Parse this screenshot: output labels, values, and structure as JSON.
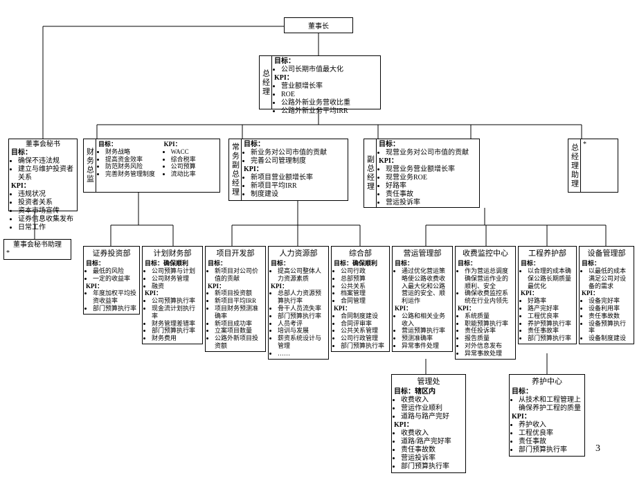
{
  "page_number": "3",
  "colors": {
    "line": "#000000",
    "bg": "#ffffff"
  },
  "font": {
    "family": "SimSun",
    "base_size": 10
  },
  "chairman": "董事长",
  "gm": {
    "label": "总经理",
    "goal_h": "目标：",
    "goal": "公司长期市值最大化",
    "kpi_h": "KPI：",
    "kpis": [
      "营业额增长率",
      "ROE",
      "公路外新业务营收比重",
      "公路外新业务平均IRR"
    ]
  },
  "secretary": {
    "title": "董事会秘书",
    "goal_h": "目标：",
    "goals": [
      "确保不违法规",
      "建立与维护投资者关系"
    ],
    "kpi_h": "KPI：",
    "kpis": [
      "违规状况",
      "投资者关系",
      "资本市场宣传",
      "证券信息收集发布",
      "日常工作"
    ]
  },
  "secretary_asst": {
    "title": "董事会秘书助理",
    "body": "*"
  },
  "cfo": {
    "label": "财务总监",
    "goal_h": "目标：",
    "goals": [
      "财务战略",
      "提高资金效率",
      "防范财务风险",
      "完善财务管理制度"
    ],
    "kpi_h": "KPI：",
    "kpis": [
      "WACC",
      "综合税率",
      "公司预算",
      "流动比率"
    ]
  },
  "evp": {
    "label": "常务副总经理",
    "goal_h": "目标：",
    "goals": [
      "新业务对公司市值的贡献",
      "完善公司管理制度"
    ],
    "kpi_h": "KPI：",
    "kpis": [
      "新项目营业额增长率",
      "新项目平均IRR",
      "制度建设"
    ]
  },
  "vp": {
    "label": "副总经理",
    "goal_h": "目标：",
    "goals": [
      "现营业务对公司市值的贡献"
    ],
    "kpi_h": "KPI：",
    "kpis": [
      "现营业务营业额增长率",
      "现营业务ROE",
      "好路率",
      "责任事故",
      "营运投诉率"
    ]
  },
  "gm_asst": {
    "label": "总经理助理",
    "body": "*"
  },
  "depts": {
    "sec_inv": {
      "title": "证券投资部",
      "goal_h": "目标：",
      "goals": [
        "最低的风险",
        "一定的收益率"
      ],
      "kpi_h": "KPI：",
      "kpis": [
        "年度加权平均投资收益率",
        "部门预算执行率"
      ]
    },
    "plan_fin": {
      "title": "计划财务部",
      "goal_h": "目标：确保顺利",
      "goals": [
        "公司预算与计划",
        "公司财务管理",
        "融资"
      ],
      "kpi_h": "KPI：",
      "kpis": [
        "公司预算执行率",
        "现金流计划执行率",
        "财务管理差错率",
        "部门预算执行率",
        "财务费用"
      ]
    },
    "proj_dev": {
      "title": "项目开发部",
      "goal_h": "目标：",
      "goals": [
        "新项目对公司价值的贡献"
      ],
      "kpi_h": "KPI：",
      "kpis": [
        "新项目投资额",
        "新项目平均IRR",
        "项目财务预测准确率",
        "新项目成功率",
        "立案项目数量",
        "公路外新项目投资额"
      ]
    },
    "hr": {
      "title": "人力资源部",
      "goal_h": "目标：",
      "goals": [
        "提高公司整体人力资源素质"
      ],
      "kpi_h": "KPI：",
      "kpis": [
        "总部人力资源预算执行率",
        "骨干人员流失率",
        "部门预算执行率",
        "人员考评",
        "培训与发展",
        "薪资系统设计与管理",
        "……"
      ]
    },
    "gen": {
      "title": "综合部",
      "goal_h": "目标：确保顺利",
      "goals": [
        "公司行政",
        "总部预算",
        "公共关系",
        "档案管理",
        "合同管理"
      ],
      "kpi_h": "KPI：",
      "kpis": [
        "合同制度建设",
        "合同评审率",
        "公共关系管理",
        "公司行政管理",
        "部门预算执行率"
      ]
    },
    "ops": {
      "title": "营运管理部",
      "goal_h": "目标：",
      "goals": [
        "通过优化营运策略使公路收费收入最大化和公路营运的安全、顺利运作"
      ],
      "kpi_h": "KPI：",
      "kpis": [
        "公路和相关业务收入",
        "营运预算执行率",
        "预测准确率",
        "异常事件处理"
      ]
    },
    "toll": {
      "title": "收费监控中心",
      "goal_h": "目标：",
      "goals": [
        "作为营运总调度确保营运作业的顺利、安全",
        "确保收费监控系统在行业内领先"
      ],
      "kpi_h": "KPI：",
      "kpis": [
        "系统质量",
        "职能预算执行率",
        "责任投诉率",
        "报告质量",
        "对外信息发布",
        "异常事故处理"
      ]
    },
    "maint": {
      "title": "工程养护部",
      "goal_h": "目标：",
      "goals": [
        "以合理的成本确保公路长期质量最优化"
      ],
      "kpi_h": "KPI：",
      "kpis": [
        "好路率",
        "路产完好率",
        "工程优良率",
        "养护预算执行率",
        "责任事故率",
        "部门预算执行率"
      ]
    },
    "equip": {
      "title": "设备管理部",
      "goal_h": "目标：",
      "goals": [
        "以最低的成本满足公司对设备的需求"
      ],
      "kpi_h": "KPI：",
      "kpis": [
        "设备完好率",
        "设备利用率",
        "责任事故数",
        "设备预算执行率",
        "设备制度建设"
      ]
    }
  },
  "sub": {
    "mgmt": {
      "title": "管理处",
      "goal_h": "目标：辖区内",
      "goals": [
        "收费收入",
        "营运作业顺利",
        "道路与路产完好"
      ],
      "kpi_h": "KPI：",
      "kpis": [
        "收费收入",
        "道路/路产完好率",
        "责任事故数",
        "营运投诉率",
        "部门预算执行率"
      ]
    },
    "maint_ctr": {
      "title": "养护中心",
      "goal_h": "目标：",
      "goals": [
        "从技术和工程管理上确保养护工程的质量"
      ],
      "kpi_h": "KPI：",
      "kpis": [
        "养护收入",
        "工程优良率",
        "责任事故",
        "部门预算执行率"
      ]
    }
  }
}
